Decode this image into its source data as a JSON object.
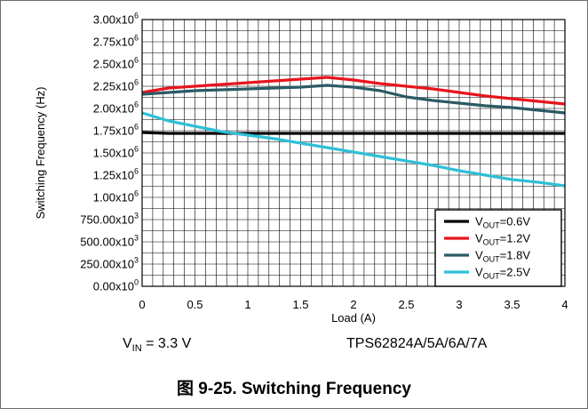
{
  "chart_data": {
    "type": "line",
    "title": "",
    "xlabel": "Load (A)",
    "ylabel": "Switching Frequency (Hz)",
    "xlim": [
      0,
      4
    ],
    "ylim": [
      0,
      3000000
    ],
    "x_ticks": [
      "0",
      "0.5",
      "1",
      "1.5",
      "2",
      "2.5",
      "3",
      "3.5",
      "4"
    ],
    "y_ticks": [
      {
        "mant": "0.00x10",
        "exp": "0"
      },
      {
        "mant": "250.00x10",
        "exp": "3"
      },
      {
        "mant": "500.00x10",
        "exp": "3"
      },
      {
        "mant": "750.00x10",
        "exp": "3"
      },
      {
        "mant": "1.00x10",
        "exp": "6"
      },
      {
        "mant": "1.25x10",
        "exp": "6"
      },
      {
        "mant": "1.50x10",
        "exp": "6"
      },
      {
        "mant": "1.75x10",
        "exp": "6"
      },
      {
        "mant": "2.00x10",
        "exp": "6"
      },
      {
        "mant": "2.25x10",
        "exp": "6"
      },
      {
        "mant": "2.50x10",
        "exp": "6"
      },
      {
        "mant": "2.75x10",
        "exp": "6"
      },
      {
        "mant": "3.00x10",
        "exp": "6"
      }
    ],
    "grid": true,
    "legend_position": "bottom-right",
    "x": [
      0,
      0.25,
      0.5,
      0.75,
      1,
      1.25,
      1.5,
      1.75,
      2,
      2.25,
      2.5,
      2.75,
      3,
      3.25,
      3.5,
      3.75,
      4
    ],
    "series": [
      {
        "name_main": "V",
        "name_sub": "OUT",
        "name_rest": "=0.6V",
        "color": "#000000",
        "values": [
          1730000,
          1720000,
          1720000,
          1720000,
          1720000,
          1720000,
          1720000,
          1720000,
          1720000,
          1720000,
          1720000,
          1720000,
          1720000,
          1720000,
          1720000,
          1720000,
          1720000
        ]
      },
      {
        "name_main": "V",
        "name_sub": "OUT",
        "name_rest": "=1.2V",
        "color": "#e8141c",
        "values": [
          2180000,
          2230000,
          2250000,
          2270000,
          2290000,
          2310000,
          2330000,
          2350000,
          2320000,
          2280000,
          2250000,
          2220000,
          2180000,
          2140000,
          2110000,
          2080000,
          2050000
        ]
      },
      {
        "name_main": "V",
        "name_sub": "OUT",
        "name_rest": "=1.8V",
        "color": "#2b5a64",
        "values": [
          2160000,
          2180000,
          2200000,
          2210000,
          2220000,
          2230000,
          2240000,
          2260000,
          2240000,
          2200000,
          2130000,
          2090000,
          2060000,
          2030000,
          2010000,
          1980000,
          1950000
        ]
      },
      {
        "name_main": "V",
        "name_sub": "OUT",
        "name_rest": "=2.5V",
        "color": "#2fc0d6",
        "values": [
          1950000,
          1860000,
          1800000,
          1740000,
          1700000,
          1660000,
          1610000,
          1560000,
          1510000,
          1460000,
          1410000,
          1360000,
          1300000,
          1250000,
          1200000,
          1170000,
          1130000
        ]
      }
    ],
    "colors": {
      "grid": "#000000",
      "frame": "#000000"
    }
  },
  "captions": {
    "vin_main": "V",
    "vin_sub": "IN",
    "vin_rest": " = 3.3 V",
    "part": "TPS62824A/5A/6A/7A",
    "figure": "图 9-25. Switching Frequency"
  }
}
